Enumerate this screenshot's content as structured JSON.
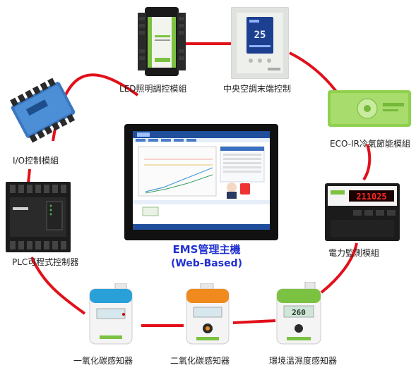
{
  "center": {
    "title_line1": "EMS管理主機",
    "title_line2": "(Web-Based)"
  },
  "nodes": [
    {
      "id": "led",
      "label": "LED照明調控模組",
      "device": "led-dimming-controller"
    },
    {
      "id": "hvac",
      "label": "中央空調末端控制",
      "device": "hvac-wall-controller"
    },
    {
      "id": "ecoir",
      "label": "ECO-IR冷氣節能模組",
      "device": "eco-ir-module"
    },
    {
      "id": "power",
      "label": "電力監測模組",
      "device": "power-meter"
    },
    {
      "id": "env",
      "label": "環境溫濕度感知器",
      "device": "temp-humidity-sensor"
    },
    {
      "id": "co2",
      "label": "二氧化碳感知器",
      "device": "co2-sensor"
    },
    {
      "id": "co",
      "label": "一氧化碳感知器",
      "device": "co-sensor"
    },
    {
      "id": "plc",
      "label": "PLC可程式控制器",
      "device": "plc-controller"
    },
    {
      "id": "io",
      "label": "I/O控制模組",
      "device": "io-module"
    }
  ],
  "device_text": {
    "hvac_display": "25",
    "power_display": "211025",
    "env_display": "260"
  },
  "colors": {
    "ring": "#e1101a",
    "title": "#1f2fd1",
    "green_device": "#7cc242",
    "orange_device": "#f08a1c",
    "blue_device": "#2aa0d8",
    "io_blue": "#2f6db0"
  }
}
